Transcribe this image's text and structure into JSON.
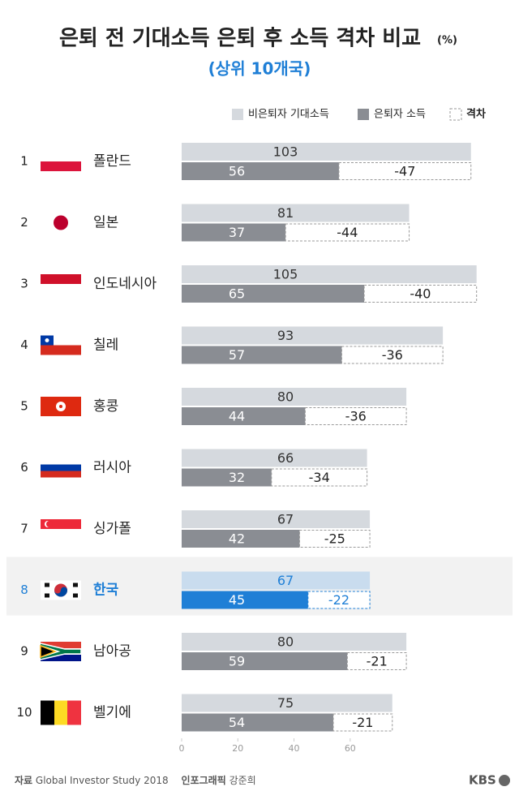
{
  "chart_data": {
    "type": "bar",
    "orientation": "horizontal",
    "title": "은퇴 전 기대소득 은퇴 후 소득 격차 비교",
    "title_unit": "(%)",
    "subtitle": "(상위 10개국)",
    "ranks": [
      1,
      2,
      3,
      4,
      5,
      6,
      7,
      8,
      9,
      10
    ],
    "categories": [
      "폴란드",
      "일본",
      "인도네시아",
      "칠레",
      "홍콩",
      "러시아",
      "싱가폴",
      "한국",
      "남아공",
      "벨기에"
    ],
    "category_colors": [
      "#222222",
      "#222222",
      "#222222",
      "#222222",
      "#222222",
      "#222222",
      "#222222",
      "#1f7fd6",
      "#222222",
      "#222222"
    ],
    "series": [
      {
        "name": "비은퇴자 기대소득",
        "color": "#d5d9de",
        "colors": [
          "#d5d9de",
          "#d5d9de",
          "#d5d9de",
          "#d5d9de",
          "#d5d9de",
          "#d5d9de",
          "#d5d9de",
          "#c9dcee",
          "#d5d9de",
          "#d5d9de"
        ],
        "values": [
          103,
          81,
          105,
          93,
          80,
          66,
          67,
          67,
          80,
          75
        ]
      },
      {
        "name": "은퇴자 소득",
        "color": "#8a8d93",
        "colors": [
          "#8a8d93",
          "#8a8d93",
          "#8a8d93",
          "#8a8d93",
          "#8a8d93",
          "#8a8d93",
          "#8a8d93",
          "#1f7fd6",
          "#8a8d93",
          "#8a8d93"
        ],
        "values": [
          56,
          37,
          65,
          57,
          44,
          32,
          42,
          45,
          59,
          54
        ]
      },
      {
        "name": "격차",
        "color": "#9a9a9a",
        "style": "dashed",
        "colors": [
          "#9a9a9a",
          "#9a9a9a",
          "#9a9a9a",
          "#9a9a9a",
          "#9a9a9a",
          "#9a9a9a",
          "#9a9a9a",
          "#1f7fd6",
          "#9a9a9a",
          "#9a9a9a"
        ],
        "values": [
          -47,
          -44,
          -40,
          -36,
          -36,
          -34,
          -25,
          -22,
          -21,
          -21
        ]
      }
    ],
    "xlim": [
      0,
      110
    ],
    "xticks": [
      0,
      20,
      40,
      60
    ],
    "legend": "top-right"
  },
  "footer": {
    "source_label": "자료",
    "source": "Global Investor Study 2018",
    "credit_label": "인포그래픽",
    "credit": "강준희",
    "logo": "KBS"
  }
}
